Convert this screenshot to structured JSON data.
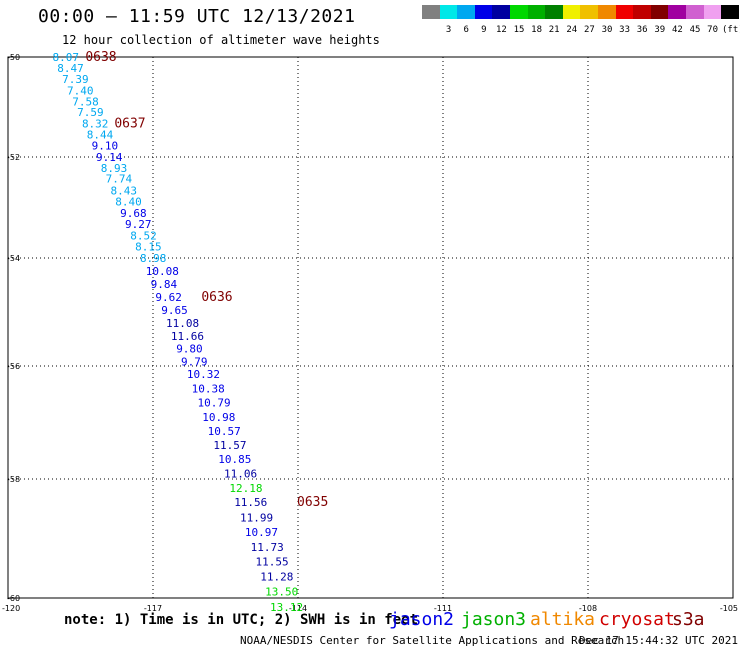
{
  "header": {
    "title": "00:00 – 11:59 UTC 12/13/2021",
    "subtitle": "12 hour collection of altimeter wave heights"
  },
  "legend": {
    "unit": "(ft)",
    "items": [
      {
        "color": "#808080",
        "label": ""
      },
      {
        "color": "#00e8e8",
        "label": "3"
      },
      {
        "color": "#00a8f0",
        "label": "6"
      },
      {
        "color": "#0000e8",
        "label": "9"
      },
      {
        "color": "#0000a0",
        "label": "12"
      },
      {
        "color": "#00d800",
        "label": "15"
      },
      {
        "color": "#00b000",
        "label": "18"
      },
      {
        "color": "#008000",
        "label": "21"
      },
      {
        "color": "#f0f000",
        "label": "24"
      },
      {
        "color": "#f0c000",
        "label": "27"
      },
      {
        "color": "#f08800",
        "label": "30"
      },
      {
        "color": "#f00000",
        "label": "33"
      },
      {
        "color": "#c00000",
        "label": "36"
      },
      {
        "color": "#800000",
        "label": "39"
      },
      {
        "color": "#a000a0",
        "label": "42"
      },
      {
        "color": "#d060d0",
        "label": "45"
      },
      {
        "color": "#f0a0f0",
        "label": "70"
      },
      {
        "color": "#000000",
        "label": ""
      }
    ]
  },
  "map": {
    "lon_range": [
      -120,
      -105
    ],
    "lat_range": [
      -50,
      -60
    ],
    "lon_ticks": [
      "-120",
      "-117",
      "-114",
      "-111",
      "-108",
      "-105"
    ],
    "lat_ticks": [
      "-50",
      "-52",
      "-54",
      "-56",
      "-58",
      "-60"
    ],
    "grid_line_color": "#000000",
    "track_points": [
      {
        "text": "8.07",
        "color": "#00a8f0",
        "lon": -119.08,
        "lat": -50.0
      },
      {
        "text": "8.47",
        "color": "#00a8f0",
        "lon": -118.98,
        "lat": -50.22
      },
      {
        "text": "7.39",
        "color": "#00a8f0",
        "lon": -118.88,
        "lat": -50.44
      },
      {
        "text": "7.40",
        "color": "#00a8f0",
        "lon": -118.78,
        "lat": -50.67
      },
      {
        "text": "7.58",
        "color": "#00a8f0",
        "lon": -118.67,
        "lat": -50.89
      },
      {
        "text": "7.59",
        "color": "#00a8f0",
        "lon": -118.57,
        "lat": -51.1
      },
      {
        "text": "8.32",
        "color": "#00a8f0",
        "lon": -118.47,
        "lat": -51.33
      },
      {
        "text": "8.44",
        "color": "#00a8f0",
        "lon": -118.37,
        "lat": -51.55
      },
      {
        "text": "9.10",
        "color": "#0000e8",
        "lon": -118.27,
        "lat": -51.77
      },
      {
        "text": "9.14",
        "color": "#0000e8",
        "lon": -118.18,
        "lat": -52.0
      },
      {
        "text": "8.93",
        "color": "#00a8f0",
        "lon": -118.08,
        "lat": -52.22
      },
      {
        "text": "7.74",
        "color": "#00a8f0",
        "lon": -117.98,
        "lat": -52.43
      },
      {
        "text": "8.43",
        "color": "#00a8f0",
        "lon": -117.88,
        "lat": -52.66
      },
      {
        "text": "8.40",
        "color": "#00a8f0",
        "lon": -117.78,
        "lat": -52.88
      },
      {
        "text": "9.68",
        "color": "#0000e8",
        "lon": -117.68,
        "lat": -53.11
      },
      {
        "text": "9.27",
        "color": "#0000e8",
        "lon": -117.58,
        "lat": -53.33
      },
      {
        "text": "8.52",
        "color": "#00a8f0",
        "lon": -117.47,
        "lat": -53.55
      },
      {
        "text": "8.15",
        "color": "#00a8f0",
        "lon": -117.37,
        "lat": -53.77
      },
      {
        "text": "8.98",
        "color": "#00a8f0",
        "lon": -117.27,
        "lat": -54.0
      },
      {
        "text": "10.08",
        "color": "#0000e8",
        "lon": -117.15,
        "lat": -54.24
      },
      {
        "text": "9.84",
        "color": "#0000e8",
        "lon": -117.05,
        "lat": -54.48
      },
      {
        "text": "9.62",
        "color": "#0000e8",
        "lon": -116.95,
        "lat": -54.72
      },
      {
        "text": "9.65",
        "color": "#0000e8",
        "lon": -116.83,
        "lat": -54.96
      },
      {
        "text": "11.08",
        "color": "#0000a0",
        "lon": -116.73,
        "lat": -55.2
      },
      {
        "text": "11.66",
        "color": "#0000a0",
        "lon": -116.63,
        "lat": -55.44
      },
      {
        "text": "9.80",
        "color": "#0000e8",
        "lon": -116.52,
        "lat": -55.68
      },
      {
        "text": "9.79",
        "color": "#0000e8",
        "lon": -116.42,
        "lat": -55.92
      },
      {
        "text": "10.32",
        "color": "#0000e8",
        "lon": -116.3,
        "lat": -56.14
      },
      {
        "text": "10.38",
        "color": "#0000e8",
        "lon": -116.2,
        "lat": -56.4
      },
      {
        "text": "10.79",
        "color": "#0000e8",
        "lon": -116.08,
        "lat": -56.65
      },
      {
        "text": "10.98",
        "color": "#0000e8",
        "lon": -115.98,
        "lat": -56.9
      },
      {
        "text": "10.57",
        "color": "#0000e8",
        "lon": -115.87,
        "lat": -57.15
      },
      {
        "text": "11.57",
        "color": "#0000a0",
        "lon": -115.75,
        "lat": -57.4
      },
      {
        "text": "10.85",
        "color": "#0000e8",
        "lon": -115.65,
        "lat": -57.65
      },
      {
        "text": "11.06",
        "color": "#0000a0",
        "lon": -115.53,
        "lat": -57.9
      },
      {
        "text": "12.18",
        "color": "#00d800",
        "lon": -115.42,
        "lat": -58.15
      },
      {
        "text": "11.56",
        "color": "#0000a0",
        "lon": -115.32,
        "lat": -58.39
      },
      {
        "text": "11.99",
        "color": "#0000a0",
        "lon": -115.2,
        "lat": -58.65
      },
      {
        "text": "10.97",
        "color": "#0000e8",
        "lon": -115.1,
        "lat": -58.89
      },
      {
        "text": "11.73",
        "color": "#0000a0",
        "lon": -114.98,
        "lat": -59.14
      },
      {
        "text": "11.55",
        "color": "#0000a0",
        "lon": -114.88,
        "lat": -59.39
      },
      {
        "text": "11.28",
        "color": "#0000a0",
        "lon": -114.78,
        "lat": -59.64
      },
      {
        "text": "13.50",
        "color": "#00d800",
        "lon": -114.68,
        "lat": -59.89
      },
      {
        "text": "13.12",
        "color": "#00d800",
        "lon": -114.58,
        "lat": -60.15
      }
    ],
    "time_labels": [
      {
        "text": "0638",
        "lon": -118.4,
        "lat": -50.0
      },
      {
        "text": "0637",
        "lon": -117.8,
        "lat": -51.33
      },
      {
        "text": "0636",
        "lon": -116.0,
        "lat": -54.72
      },
      {
        "text": "0635",
        "lon": -114.02,
        "lat": -58.39
      }
    ],
    "time_label_color": "#800000"
  },
  "footer": {
    "note": "note: 1) Time is in UTC; 2) SWH is in feet",
    "satellites": [
      {
        "name": "jason2",
        "color": "#0000e8"
      },
      {
        "name": "jason3",
        "color": "#00b000"
      },
      {
        "name": "altika",
        "color": "#f08800"
      },
      {
        "name": "cryosat",
        "color": "#d00000"
      },
      {
        "name": "s3a",
        "color": "#800000"
      }
    ],
    "credit": "NOAA/NESDIS Center for Satellite Applications and Research",
    "timestamp": "Dec 17 15:44:32 UTC 2021"
  }
}
